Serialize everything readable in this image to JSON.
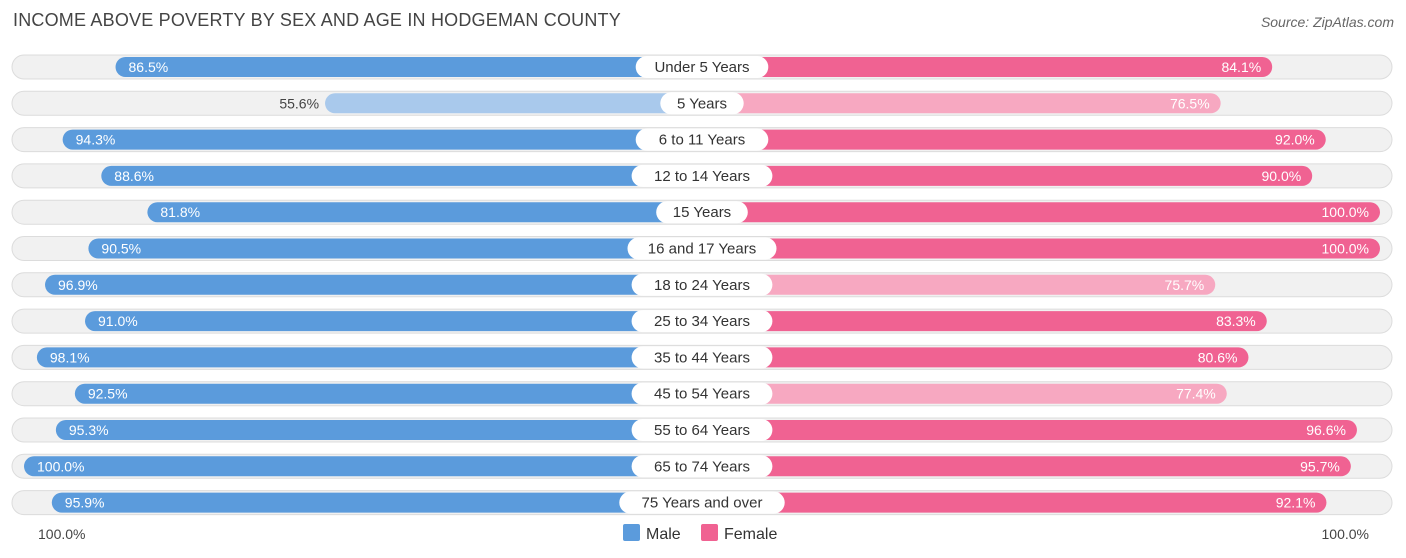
{
  "header": {
    "title": "INCOME ABOVE POVERTY BY SEX AND AGE IN HODGEMAN COUNTY",
    "source": "Source: ZipAtlas.com"
  },
  "colors": {
    "male_strong": "#5b9bdc",
    "male_light": "#a9c9ec",
    "female_strong": "#f06292",
    "female_light": "#f7a8c1",
    "track": "#f1f1f1"
  },
  "chart_data": {
    "type": "bar",
    "orientation": "diverging-horizontal",
    "categories": [
      "Under 5 Years",
      "5 Years",
      "6 to 11 Years",
      "12 to 14 Years",
      "15 Years",
      "16 and 17 Years",
      "18 to 24 Years",
      "25 to 34 Years",
      "35 to 44 Years",
      "45 to 54 Years",
      "55 to 64 Years",
      "65 to 74 Years",
      "75 Years and over"
    ],
    "series": [
      {
        "name": "Male",
        "values": [
          86.5,
          55.6,
          94.3,
          88.6,
          81.8,
          90.5,
          96.9,
          91.0,
          98.1,
          92.5,
          95.3,
          100.0,
          95.9
        ],
        "labels": [
          "86.5%",
          "55.6%",
          "94.3%",
          "88.6%",
          "81.8%",
          "90.5%",
          "96.9%",
          "91.0%",
          "98.1%",
          "92.5%",
          "95.3%",
          "100.0%",
          "95.9%"
        ]
      },
      {
        "name": "Female",
        "values": [
          84.1,
          76.5,
          92.0,
          90.0,
          100.0,
          100.0,
          75.7,
          83.3,
          80.6,
          77.4,
          96.6,
          95.7,
          92.1
        ],
        "labels": [
          "84.1%",
          "76.5%",
          "92.0%",
          "90.0%",
          "100.0%",
          "100.0%",
          "75.7%",
          "83.3%",
          "80.6%",
          "77.4%",
          "96.6%",
          "95.7%",
          "92.1%"
        ]
      }
    ],
    "axis_left_label": "100.0%",
    "axis_right_label": "100.0%",
    "xlim": [
      0,
      100
    ],
    "legend": {
      "placement": "bottom-center",
      "items": [
        "Male",
        "Female"
      ]
    }
  }
}
